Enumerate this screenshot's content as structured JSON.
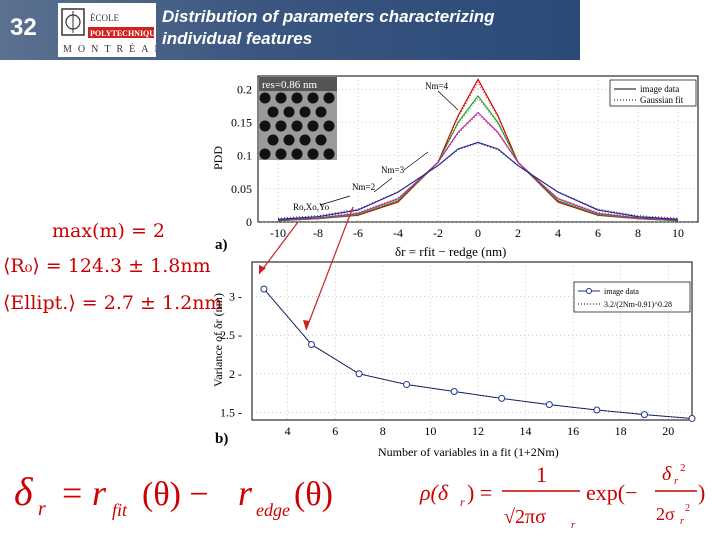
{
  "header": {
    "slide_number": "32",
    "title": "Distribution of parameters characterizing individual features",
    "logo": {
      "top": "ÉCOLE",
      "middle": "POLYTECHNIQUE",
      "bottom": "MONTRÉAL"
    }
  },
  "left_equations": {
    "max_m": "max(m) = 2",
    "r0": "⟨R₀⟩ = 124.3 ± 1.8nm",
    "ellipt": "⟨Ellipt.⟩ = 2.7 ± 1.2nm"
  },
  "bottom_equations": {
    "delta_r": "δr = rfit(θ) − redge(θ)",
    "rho": "ρ(δr) = 1/(√(2π)σr) · exp(−δr²/(2σr²))"
  },
  "colors": {
    "header_bg": "#3a5680",
    "formula": "#cc0000",
    "grid": "#000000"
  },
  "chart_data": [
    {
      "type": "line",
      "panel_label": "a)",
      "xlabel": "δr = rfit − redge (nm)",
      "ylabel": "PDD",
      "xlim": [
        -11,
        11
      ],
      "ylim": [
        0,
        0.22
      ],
      "xticks": [
        -10,
        -8,
        -6,
        -4,
        -2,
        0,
        2,
        4,
        6,
        8,
        10
      ],
      "yticks": [
        0,
        0.05,
        0.1,
        0.15,
        0.2
      ],
      "ytick_labels": [
        "0",
        "0.05",
        "0.1",
        "0.15",
        "0.2"
      ],
      "inset_label": "res=0.86 nm",
      "legend": [
        "image data",
        "Gaussian fit"
      ],
      "legend_position": "top-right",
      "annotations": [
        "Nm=4",
        "Nm=3",
        "Nm=2",
        "Ro,Xo,Yo"
      ],
      "x": [
        -10,
        -8,
        -6,
        -4,
        -2,
        -1,
        0,
        1,
        2,
        4,
        6,
        8,
        10
      ],
      "series": [
        {
          "name": "Nm=4",
          "color": "#cc0000",
          "values": [
            0.002,
            0.005,
            0.01,
            0.03,
            0.09,
            0.16,
            0.215,
            0.16,
            0.09,
            0.03,
            0.01,
            0.005,
            0.002
          ]
        },
        {
          "name": "Nm=3",
          "color": "#229922",
          "values": [
            0.002,
            0.005,
            0.011,
            0.032,
            0.09,
            0.15,
            0.19,
            0.15,
            0.09,
            0.032,
            0.011,
            0.005,
            0.002
          ]
        },
        {
          "name": "Nm=2",
          "color": "#bb2299",
          "values": [
            0.003,
            0.006,
            0.013,
            0.035,
            0.09,
            0.135,
            0.165,
            0.135,
            0.09,
            0.035,
            0.013,
            0.006,
            0.003
          ]
        },
        {
          "name": "Ro,Xo,Yo",
          "color": "#222288",
          "values": [
            0.004,
            0.008,
            0.018,
            0.045,
            0.085,
            0.11,
            0.12,
            0.11,
            0.085,
            0.045,
            0.018,
            0.008,
            0.004
          ]
        }
      ]
    },
    {
      "type": "scatter",
      "panel_label": "b)",
      "xlabel": "Number of variables in a fit (1+2Nm)",
      "ylabel": "Variance of δr (nm)",
      "xlim": [
        2.5,
        21
      ],
      "ylim": [
        1.4,
        3.45
      ],
      "xticks": [
        4,
        6,
        8,
        10,
        12,
        14,
        16,
        18,
        20
      ],
      "yticks": [
        1.5,
        2,
        2.5,
        3
      ],
      "ytick_labels": [
        "1.5",
        "2",
        "2.5",
        "3"
      ],
      "legend": [
        "image data",
        "3.2/(2Nm-0.91)^0.28"
      ],
      "legend_position": "top-right",
      "x": [
        3,
        5,
        7,
        9,
        11,
        13,
        15,
        17,
        19,
        21
      ],
      "values": [
        3.1,
        2.38,
        2.0,
        1.86,
        1.77,
        1.68,
        1.6,
        1.53,
        1.47,
        1.42
      ]
    }
  ]
}
